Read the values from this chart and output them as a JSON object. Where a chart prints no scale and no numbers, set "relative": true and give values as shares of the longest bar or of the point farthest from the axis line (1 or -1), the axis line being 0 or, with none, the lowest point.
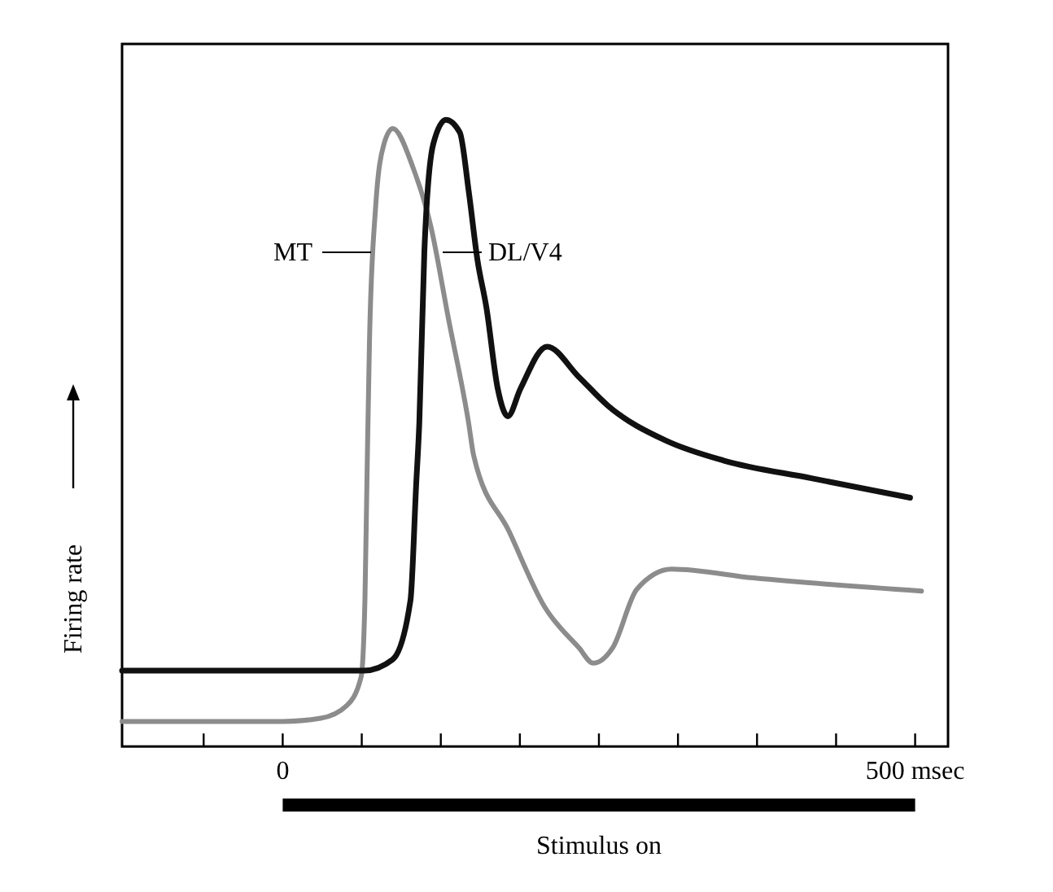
{
  "chart_data": {
    "type": "line",
    "relative": true,
    "ylabel": "Firing rate",
    "xlim": [
      -127,
      526
    ],
    "xticks": [
      {
        "value": -62.5,
        "label": null
      },
      {
        "value": 0,
        "label": "0"
      },
      {
        "value": 62.5,
        "label": null
      },
      {
        "value": 125,
        "label": null
      },
      {
        "value": 187.5,
        "label": null
      },
      {
        "value": 250,
        "label": null
      },
      {
        "value": 312.5,
        "label": null
      },
      {
        "value": 375,
        "label": null
      },
      {
        "value": 437.5,
        "label": null
      },
      {
        "value": 500,
        "label": "500 msec"
      }
    ],
    "annotations": [
      "Stimulus on"
    ],
    "series": [
      {
        "name": "MT",
        "color": "#8c8c8c",
        "x": [
          -127,
          0,
          30,
          50.5,
          62,
          65,
          66.6,
          68.6,
          73.4,
          80,
          87,
          103,
          117,
          131,
          147,
          151,
          179,
          207,
          234,
          245.5,
          261,
          280,
          307.6,
          372,
          505
        ],
        "values": [
          0.04,
          0.04,
          0.045,
          0.065,
          0.111,
          0.233,
          0.423,
          0.646,
          0.859,
          0.961,
          0.986,
          0.924,
          0.831,
          0.683,
          0.516,
          0.464,
          0.343,
          0.223,
          0.158,
          0.133,
          0.158,
          0.251,
          0.283,
          0.269,
          0.248
        ]
      },
      {
        "name": "DL/V4",
        "color": "#111111",
        "x": [
          -127,
          64,
          87,
          101,
          105.5,
          108,
          112,
          119,
          129,
          140,
          147,
          154,
          161,
          170,
          178,
          188,
          209,
          234,
          257,
          303,
          349,
          418,
          496
        ],
        "values": [
          0.121,
          0.121,
          0.139,
          0.233,
          0.417,
          0.516,
          0.79,
          0.961,
          1,
          0.98,
          0.887,
          0.776,
          0.701,
          0.571,
          0.527,
          0.571,
          0.638,
          0.59,
          0.544,
          0.488,
          0.456,
          0.428,
          0.397
        ]
      }
    ]
  }
}
